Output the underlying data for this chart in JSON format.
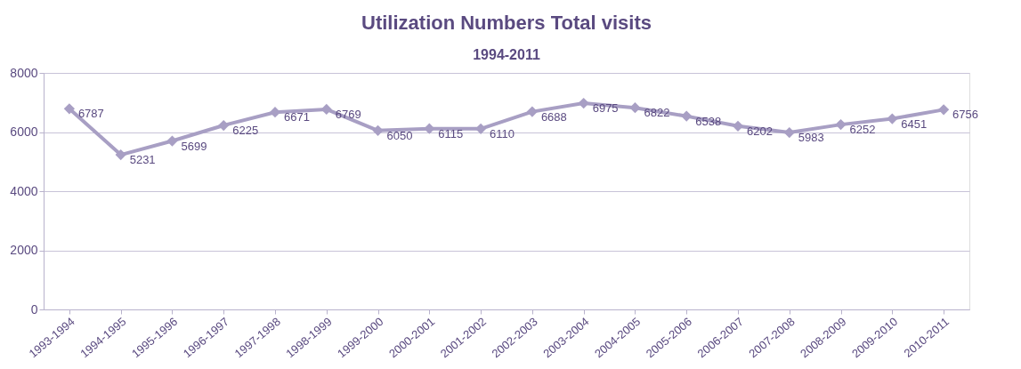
{
  "chart_data": {
    "type": "line",
    "title": "Utilization Numbers Total visits",
    "subtitle": "1994-2011",
    "categories": [
      "1993-1994",
      "1994-1995",
      "1995-1996",
      "1996-1997",
      "1997-1998",
      "1998-1999",
      "1999-2000",
      "2000-2001",
      "2001-2002",
      "2002-2003",
      "2003-2004",
      "2004-2005",
      "2005-2006",
      "2006-2007",
      "2007-2008",
      "2008-2009",
      "2009-2010",
      "2010-2011"
    ],
    "series": [
      {
        "color": "#a89fc4",
        "values": [
          6787,
          5231,
          5699,
          6225,
          6671,
          6769,
          6050,
          6115,
          6110,
          6688,
          6975,
          6822,
          6538,
          6202,
          5983,
          6252,
          6451,
          6756
        ]
      }
    ],
    "ylim": [
      0,
      8000
    ],
    "yticks": [
      0,
      2000,
      4000,
      6000,
      8000
    ],
    "grid": "y",
    "marker": "diamond",
    "data_labels": true
  }
}
